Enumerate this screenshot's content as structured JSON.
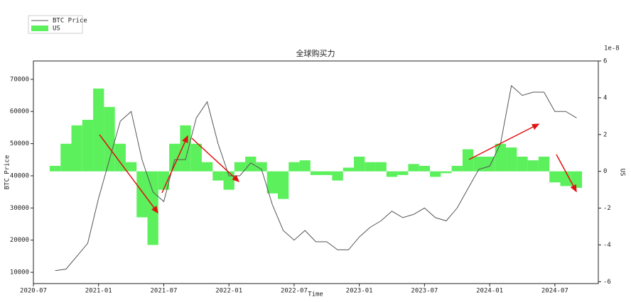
{
  "chart_data": {
    "type": "combo",
    "title": "全球购买力",
    "x_label": "Time",
    "y_label": "BTC Price",
    "y2_label": "US",
    "y2_offset_label": "1e-8",
    "x": [
      "2020-09",
      "2020-10",
      "2020-11",
      "2020-12",
      "2021-01",
      "2021-02",
      "2021-03",
      "2021-04",
      "2021-05",
      "2021-06",
      "2021-07",
      "2021-08",
      "2021-09",
      "2021-10",
      "2021-11",
      "2021-12",
      "2022-01",
      "2022-02",
      "2022-03",
      "2022-04",
      "2022-05",
      "2022-06",
      "2022-07",
      "2022-08",
      "2022-09",
      "2022-10",
      "2022-11",
      "2022-12",
      "2023-01",
      "2023-02",
      "2023-03",
      "2023-04",
      "2023-05",
      "2023-06",
      "2023-07",
      "2023-08",
      "2023-09",
      "2023-10",
      "2023-11",
      "2023-12",
      "2024-01",
      "2024-02",
      "2024-03",
      "2024-04",
      "2024-05",
      "2024-06",
      "2024-07",
      "2024-08",
      "2024-09"
    ],
    "series": [
      {
        "name": "BTC Price",
        "type": "line",
        "color": "#555555",
        "values": [
          10500,
          11000,
          15000,
          19000,
          33000,
          45000,
          57000,
          60000,
          45000,
          35000,
          32000,
          45000,
          45000,
          58000,
          63000,
          50000,
          40000,
          40000,
          44000,
          42000,
          31000,
          23000,
          20000,
          23000,
          19500,
          19500,
          17000,
          17000,
          21000,
          24000,
          26000,
          29000,
          27000,
          28000,
          30000,
          27000,
          26000,
          30000,
          36000,
          42000,
          43000,
          50000,
          68000,
          65000,
          66000,
          66000,
          60000,
          60000,
          58000
        ]
      },
      {
        "name": "US",
        "type": "bar",
        "axis": "y2",
        "color": "#5cf05c",
        "values": [
          0.3,
          1.5,
          2.5,
          2.8,
          4.5,
          3.5,
          1.5,
          0.5,
          -2.5,
          -4,
          -1,
          1.5,
          2.5,
          1.5,
          0.5,
          -0.5,
          -1,
          0.5,
          0.8,
          0.5,
          -1.2,
          -1.5,
          0.5,
          0.6,
          -0.2,
          -0.2,
          -0.5,
          0.2,
          0.8,
          0.5,
          0.5,
          -0.3,
          -0.2,
          0.4,
          0.3,
          -0.3,
          -0.1,
          0.3,
          1.2,
          0.8,
          0.8,
          1.5,
          1.3,
          0.8,
          0.6,
          0.8,
          -0.6,
          -0.8,
          -0.9
        ]
      }
    ],
    "xlim": [
      "2020-07",
      "2024-11"
    ],
    "xticks": [
      "2020-07",
      "2021-01",
      "2021-07",
      "2022-01",
      "2022-07",
      "2023-01",
      "2023-07",
      "2024-01",
      "2024-07"
    ],
    "ylim": [
      6500,
      75700
    ],
    "yticks": [
      10000,
      20000,
      30000,
      40000,
      50000,
      60000,
      70000
    ],
    "y2lim": [
      -6.1,
      6.0
    ],
    "y2ticks": [
      -6,
      -4,
      -2,
      0,
      2,
      4,
      6
    ],
    "legend": "upper-left"
  }
}
